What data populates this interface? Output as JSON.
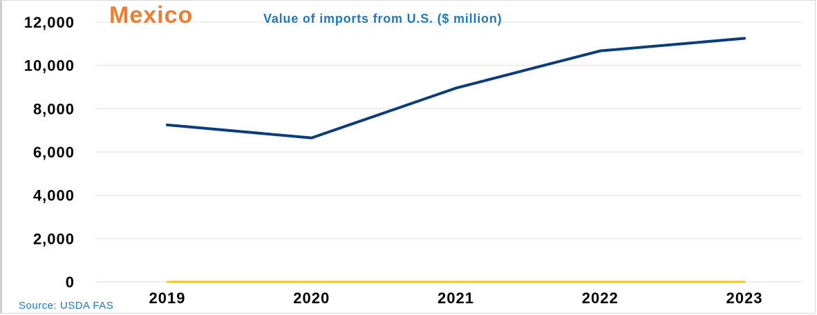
{
  "chart_data": {
    "type": "line",
    "title": "Mexico",
    "subtitle": "Value of imports from U.S. ($ million)",
    "source": "Source: USDA FAS",
    "xlabel": "",
    "ylabel": "",
    "categories": [
      "2019",
      "2020",
      "2021",
      "2022",
      "2023"
    ],
    "series": [
      {
        "name": "Value of imports from U.S.",
        "values": [
          7250,
          6650,
          8950,
          10670,
          11250
        ],
        "color": "#0b3d7a"
      },
      {
        "name": "Baseline",
        "values": [
          0,
          0,
          0,
          0,
          0
        ],
        "color": "#f5c518"
      }
    ],
    "ylim": [
      0,
      12000
    ],
    "yticks": [
      0,
      2000,
      4000,
      6000,
      8000,
      10000,
      12000
    ],
    "ytick_labels": [
      "0",
      "2,000",
      "4,000",
      "6,000",
      "8,000",
      "10,000",
      "12,000"
    ],
    "grid": true,
    "legend": "none"
  },
  "colors": {
    "title": "#ed7d31",
    "subtitle": "#1f77c0",
    "line": "#0b3d7a",
    "baseline": "#f5c518"
  }
}
